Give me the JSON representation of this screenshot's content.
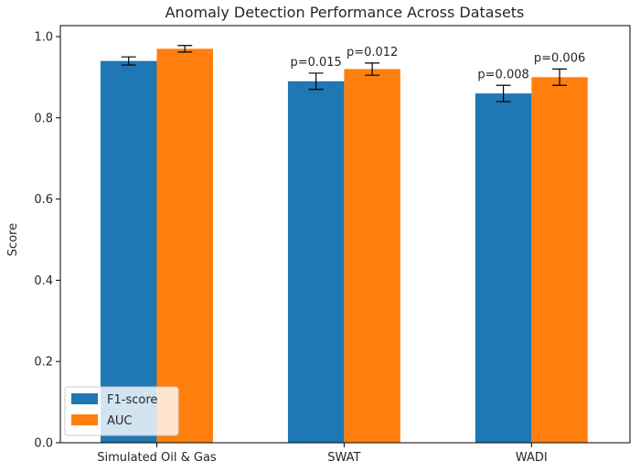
{
  "chart_data": {
    "type": "bar",
    "title": "Anomaly Detection Performance Across Datasets",
    "xlabel": "",
    "ylabel": "Score",
    "ylim": [
      0,
      1.0
    ],
    "yticks": [
      0.0,
      0.2,
      0.4,
      0.6,
      0.8,
      1.0
    ],
    "ytick_labels": [
      "0.0",
      "0.2",
      "0.4",
      "0.6",
      "0.8",
      "1.0"
    ],
    "categories": [
      "Simulated Oil & Gas",
      "SWAT",
      "WADI"
    ],
    "series": [
      {
        "name": "F1-score",
        "color": "#1f77b4",
        "values": [
          0.94,
          0.89,
          0.86
        ],
        "errors": [
          0.01,
          0.02,
          0.02
        ]
      },
      {
        "name": "AUC",
        "color": "#ff7f0e",
        "values": [
          0.97,
          0.92,
          0.9
        ],
        "errors": [
          0.008,
          0.015,
          0.02
        ]
      }
    ],
    "annotations": [
      {
        "category": 1,
        "series": 0,
        "text": "p=0.015"
      },
      {
        "category": 1,
        "series": 1,
        "text": "p=0.012"
      },
      {
        "category": 2,
        "series": 0,
        "text": "p=0.008"
      },
      {
        "category": 2,
        "series": 1,
        "text": "p=0.006"
      }
    ],
    "legend": {
      "placement": "lower-left"
    },
    "grid": false
  }
}
